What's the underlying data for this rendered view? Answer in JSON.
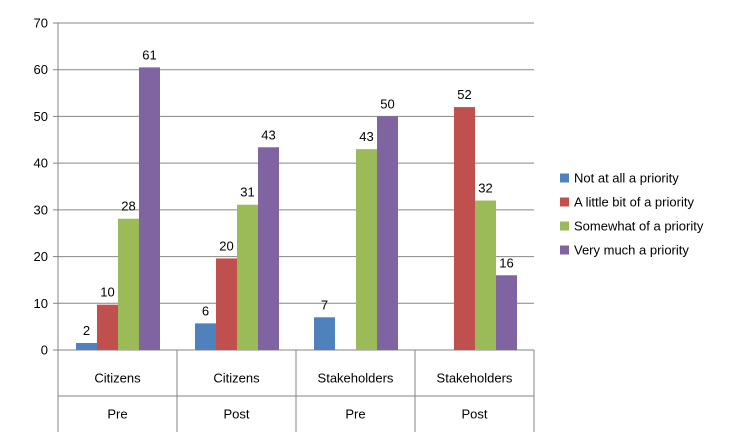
{
  "chart_data": {
    "type": "bar",
    "ylim": [
      0,
      70
    ],
    "yticks": [
      0,
      10,
      20,
      30,
      40,
      50,
      60,
      70
    ],
    "grid": true,
    "legend_position": "right",
    "categories": [
      {
        "primary": "Citizens",
        "secondary": "Pre"
      },
      {
        "primary": "Citizens",
        "secondary": "Post"
      },
      {
        "primary": "Stakeholders",
        "secondary": "Pre"
      },
      {
        "primary": "Stakeholders",
        "secondary": "Post"
      }
    ],
    "series": [
      {
        "name": "Not at all a priority",
        "color": "#4f81bd",
        "values": [
          1.5,
          5.7,
          7,
          null
        ],
        "labels": [
          "2",
          "6",
          "7",
          ""
        ]
      },
      {
        "name": "A little bit of a priority",
        "color": "#c0504d",
        "values": [
          9.7,
          19.6,
          null,
          52
        ],
        "labels": [
          "10",
          "20",
          "",
          "52"
        ]
      },
      {
        "name": "Somewhat of a priority",
        "color": "#9bbb59",
        "values": [
          28.1,
          31.1,
          43,
          32
        ],
        "labels": [
          "28",
          "31",
          "43",
          "32"
        ]
      },
      {
        "name": "Very much a priority",
        "color": "#8064a2",
        "values": [
          60.5,
          43.4,
          50,
          16
        ],
        "labels": [
          "61",
          "43",
          "50",
          "16"
        ]
      }
    ]
  }
}
